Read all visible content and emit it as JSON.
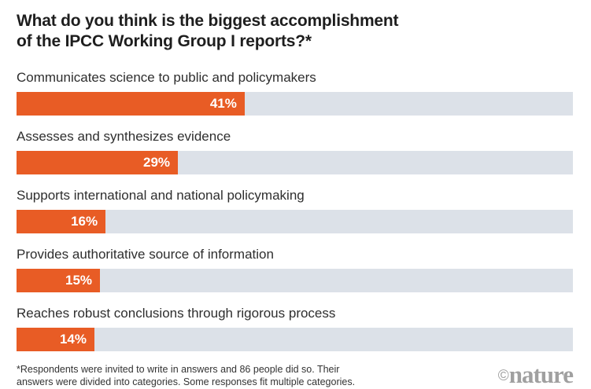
{
  "title": {
    "line1": "What do you think is the biggest accomplishment",
    "line2": "of the IPCC Working Group I reports?*"
  },
  "chart_data": {
    "type": "bar",
    "orientation": "horizontal",
    "title": "What do you think is the biggest accomplishment of the IPCC Working Group I reports?*",
    "categories": [
      "Communicates science to public and policymakers",
      "Assesses and synthesizes evidence",
      "Supports international and national policymaking",
      "Provides authoritative source of information",
      "Reaches robust conclusions through rigorous process"
    ],
    "values": [
      41,
      29,
      16,
      15,
      14
    ],
    "value_labels": [
      "41%",
      "29%",
      "16%",
      "15%",
      "14%"
    ],
    "xlim": [
      0,
      100
    ],
    "unit": "percent",
    "grid": false,
    "legend": false
  },
  "footnote": {
    "line1": "*Respondents were invited to write in answers and 86 people did so. Their",
    "line2": "answers were divided into categories. Some responses fit multiple categories."
  },
  "logo": {
    "copyright": "©",
    "brand": "nature"
  },
  "colors": {
    "accent_orange": "#E85C25",
    "track_gray": "#DCE1E8",
    "title_text": "#1E1E1E",
    "label_text": "#2E2E2E",
    "footnote_text": "#333333",
    "logo_gray": "#A0A0A0",
    "background": "#FFFFFF"
  }
}
